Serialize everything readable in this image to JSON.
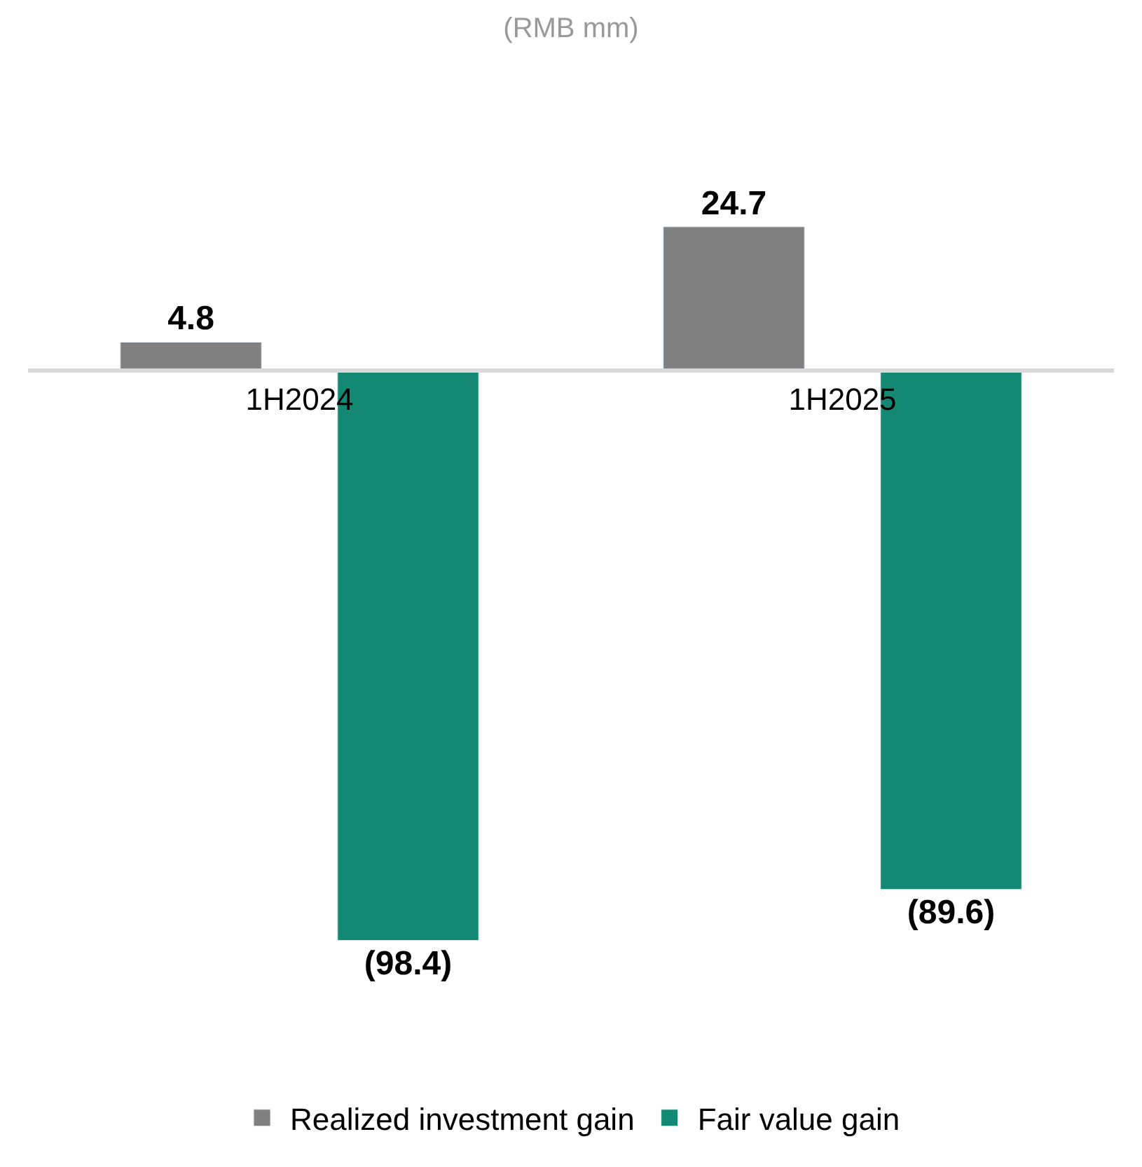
{
  "chart_data": {
    "type": "bar",
    "title": "(RMB mm)",
    "categories": [
      "1H2024",
      "1H2025"
    ],
    "series": [
      {
        "name": "Realized investment gain",
        "color": "#808080",
        "values": [
          4.8,
          24.7
        ],
        "value_labels": [
          "4.8",
          "24.7"
        ]
      },
      {
        "name": "Fair value gain",
        "color": "#138873",
        "values": [
          -98.4,
          -89.6
        ],
        "value_labels": [
          "(98.4)",
          "(89.6)"
        ]
      }
    ],
    "legend": "bottom"
  }
}
